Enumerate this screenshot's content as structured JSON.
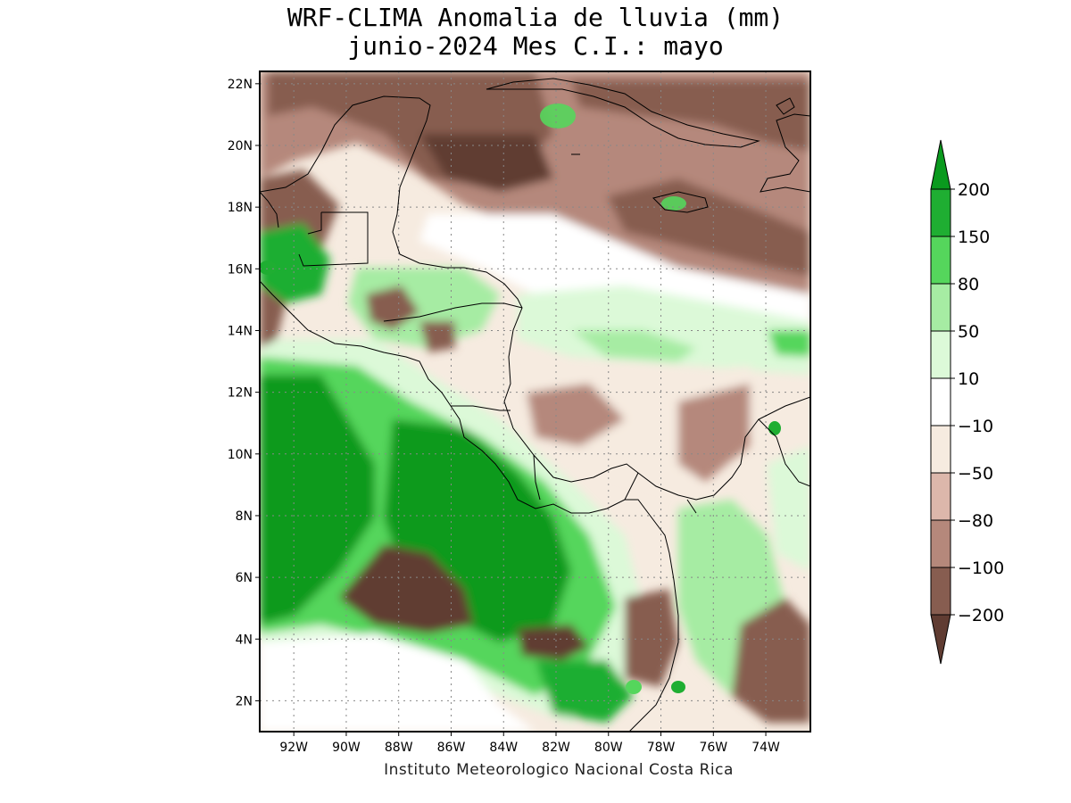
{
  "title": {
    "line1": "WRF-CLIMA Anomalia de lluvia (mm)",
    "line2": "junio-2024 Mes C.I.: mayo"
  },
  "credit": "Instituto Meteorologico Nacional Costa Rica",
  "map": {
    "lon_range": [
      -93.3,
      -72.3
    ],
    "lat_range": [
      1.0,
      22.4
    ],
    "lat_ticks": [
      "2N",
      "4N",
      "6N",
      "8N",
      "10N",
      "12N",
      "14N",
      "16N",
      "18N",
      "20N",
      "22N"
    ],
    "lon_ticks": [
      "92W",
      "90W",
      "88W",
      "86W",
      "84W",
      "82W",
      "80W",
      "78W",
      "76W",
      "74W"
    ],
    "gridlines": "dotted"
  },
  "legend": {
    "levels": [
      "200",
      "150",
      "80",
      "50",
      "10",
      "−10",
      "−50",
      "−80",
      "−100",
      "−200"
    ],
    "colors": {
      "gt200": "#0a9a1e",
      "150_200": "#1fae32",
      "80_150": "#55d65c",
      "50_80": "#a6eca3",
      "10_50": "#dcf9d8",
      "m10_10": "#ffffff",
      "m50_m10": "#f6ebe0",
      "m80_m50": "#dcb7ab",
      "m100_m80": "#b5887b",
      "m200_m100": "#875d50",
      "lt_m200": "#603c32"
    }
  }
}
